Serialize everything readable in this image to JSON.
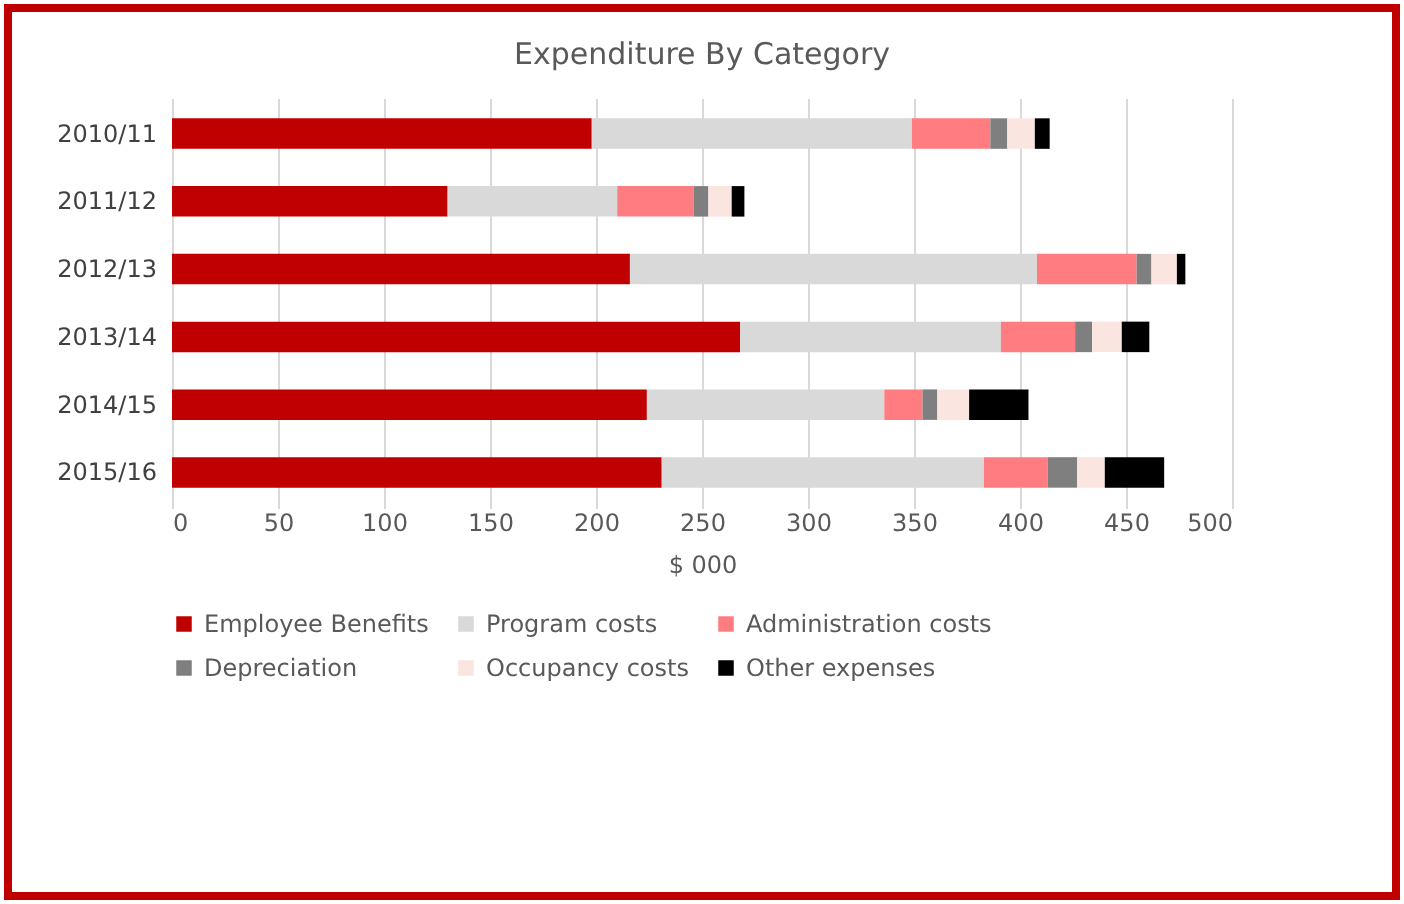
{
  "chart_data": {
    "type": "bar",
    "orientation": "horizontal",
    "stacked": true,
    "title": "Expenditure By Category",
    "xlabel": "$ 000",
    "categories": [
      "2010/11",
      "2011/12",
      "2012/13",
      "2013/14",
      "2014/15",
      "2015/16"
    ],
    "series": [
      {
        "name": "Employee Benefits",
        "color": "#c00000",
        "values": [
          198,
          130,
          216,
          268,
          224,
          231
        ]
      },
      {
        "name": "Program costs",
        "color": "#d9d9d9",
        "values": [
          151,
          80,
          192,
          123,
          112,
          152
        ]
      },
      {
        "name": "Administration costs",
        "color": "#ff7c80",
        "values": [
          37,
          36,
          47,
          35,
          18,
          30
        ]
      },
      {
        "name": "Depreciation",
        "color": "#7f7f7f",
        "values": [
          8,
          7,
          7,
          8,
          7,
          14
        ]
      },
      {
        "name": "Occupancy costs",
        "color": "#fbe5e0",
        "values": [
          13,
          11,
          12,
          14,
          15,
          13
        ]
      },
      {
        "name": "Other expenses",
        "color": "#000000",
        "values": [
          7,
          6,
          4,
          13,
          28,
          28
        ]
      }
    ],
    "xlim": [
      0,
      500
    ],
    "xticks": [
      0,
      50,
      100,
      150,
      200,
      250,
      300,
      350,
      400,
      450,
      500
    ],
    "grid": "x",
    "legend": "bottom"
  }
}
